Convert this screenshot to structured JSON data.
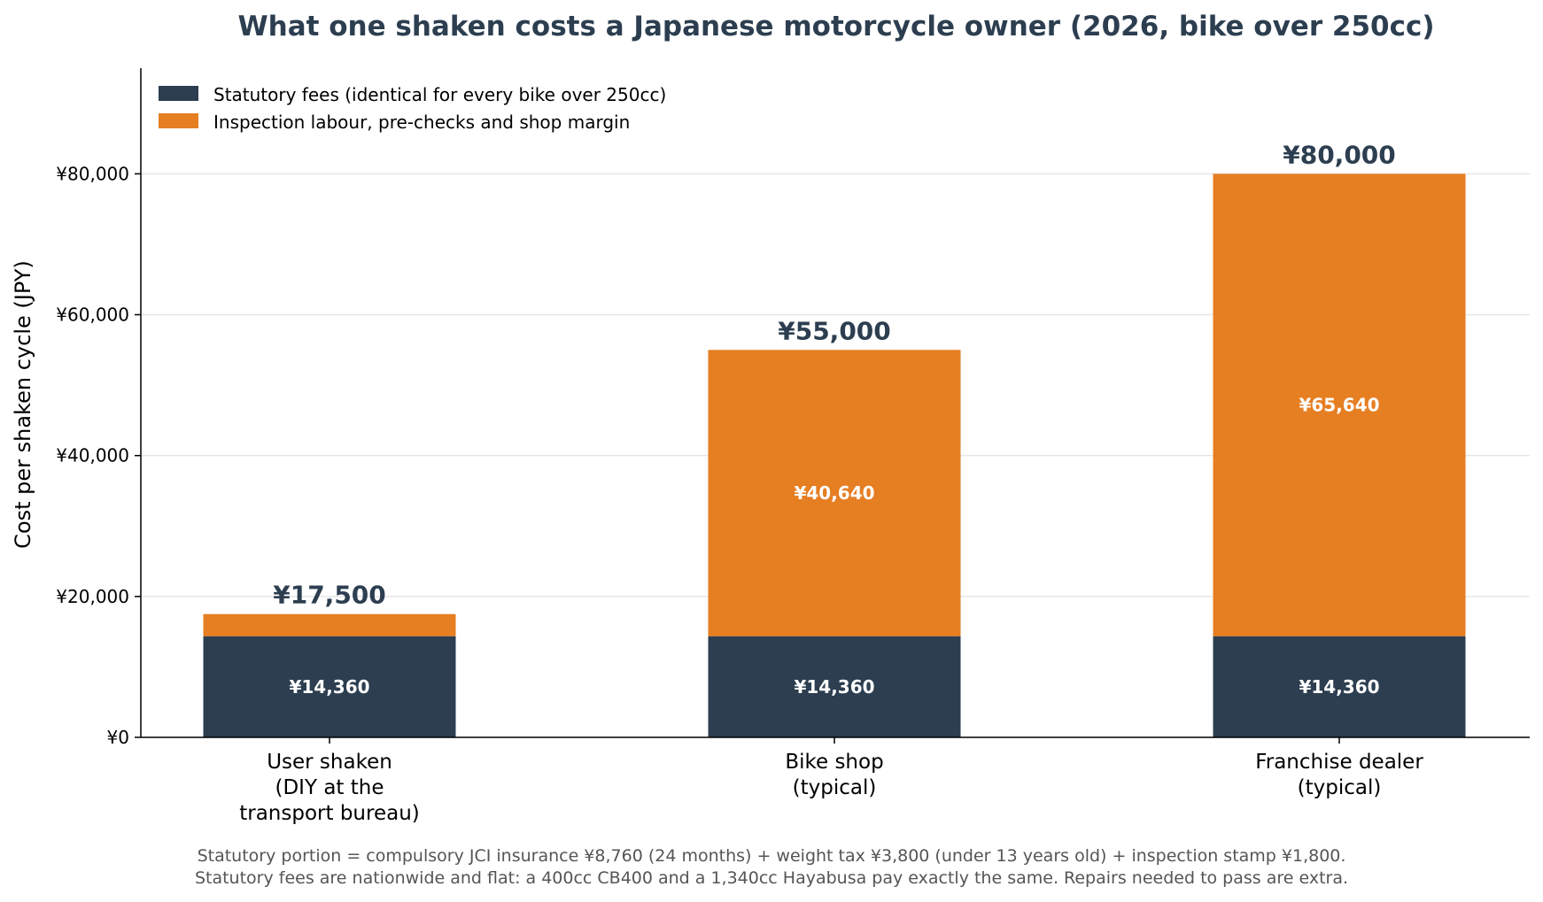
{
  "chart_data": {
    "type": "bar",
    "stacked": true,
    "title": "What one shaken costs a Japanese motorcycle owner (2026, bike over 250cc)",
    "ylabel": "Cost per shaken cycle (JPY)",
    "xlabel": "",
    "ylim": [
      0,
      95000
    ],
    "yticks": [
      0,
      20000,
      40000,
      60000,
      80000
    ],
    "ytick_labels": [
      "¥0",
      "¥20,000",
      "¥40,000",
      "¥60,000",
      "¥80,000"
    ],
    "grid": "horizontal",
    "legend_position": "top-left",
    "categories": [
      [
        "User shaken",
        "(DIY at the",
        "transport bureau)"
      ],
      [
        "Bike shop",
        "(typical)"
      ],
      [
        "Franchise dealer",
        "(typical)"
      ]
    ],
    "series": [
      {
        "name": "Statutory fees (identical for every bike over 250cc)",
        "color": "#2c3e50",
        "values": [
          14360,
          14360,
          14360
        ],
        "labels": [
          "¥14,360",
          "¥14,360",
          "¥14,360"
        ]
      },
      {
        "name": "Inspection labour, pre-checks and shop margin",
        "color": "#e67e22",
        "values": [
          3140,
          40640,
          65640
        ],
        "labels": [
          "",
          "¥40,640",
          "¥65,640"
        ]
      }
    ],
    "totals": [
      17500,
      55000,
      80000
    ],
    "total_labels": [
      "¥17,500",
      "¥55,000",
      "¥80,000"
    ],
    "footnote": [
      "Statutory portion = compulsory JCI insurance ¥8,760 (24 months) + weight tax ¥3,800 (under 13 years old) + inspection stamp ¥1,800.",
      "Statutory fees are nationwide and flat: a 400cc CB400 and a 1,340cc Hayabusa pay exactly the same. Repairs needed to pass are extra."
    ]
  }
}
